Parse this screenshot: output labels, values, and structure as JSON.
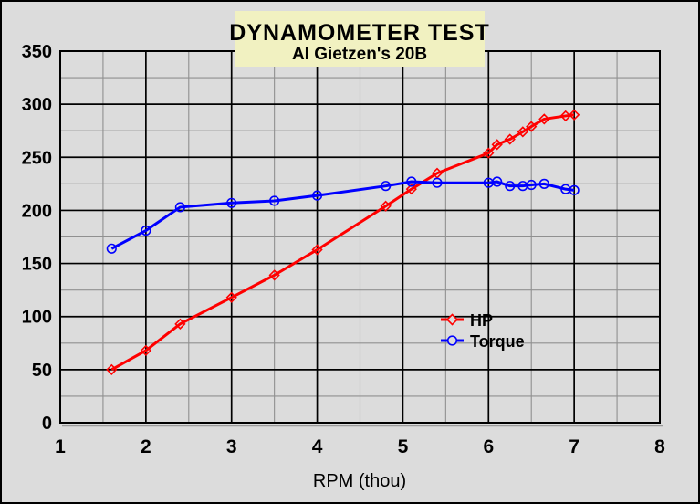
{
  "window": {
    "background_color": "#dcdcdc",
    "border_color": "#000000"
  },
  "colors": {
    "major_grid": "#000000",
    "minor_grid": "#909090",
    "plot_border": "#000000",
    "title_bg": "#f1f1c1",
    "hp_color": "#ff0000",
    "torque_color": "#0000ff",
    "shadow": "#9a9a9a"
  },
  "chart_data": {
    "type": "line",
    "title": "DYNAMOMETER TEST",
    "subtitle": "Al Gietzen's 20B",
    "xlabel": "RPM (thou)",
    "ylabel": "",
    "xlim": [
      1,
      8
    ],
    "ylim": [
      0,
      350
    ],
    "x_major_ticks": [
      1,
      2,
      3,
      4,
      5,
      6,
      7,
      8
    ],
    "y_major_ticks": [
      0,
      50,
      100,
      150,
      200,
      250,
      300,
      350
    ],
    "x_minor_step": 0.5,
    "y_minor_step": 25,
    "grid": "both-major-and-minor",
    "legend_position": "inside-right-middle",
    "x": [
      1.6,
      2.0,
      2.4,
      3.0,
      3.5,
      4.0,
      4.8,
      5.1,
      5.4,
      6.0,
      6.1,
      6.25,
      6.4,
      6.5,
      6.65,
      6.9,
      7.0
    ],
    "series": [
      {
        "name": "HP",
        "color": "#ff0000",
        "marker": "diamond",
        "values": [
          50,
          68,
          93,
          118,
          139,
          163,
          204,
          220,
          235,
          254,
          262,
          267,
          274,
          279,
          286,
          289,
          290
        ]
      },
      {
        "name": "Torque",
        "color": "#0000ff",
        "marker": "circle",
        "values": [
          164,
          181,
          203,
          207,
          209,
          214,
          223,
          227,
          226,
          226,
          227,
          223,
          223,
          224,
          225,
          220,
          219
        ]
      }
    ]
  }
}
